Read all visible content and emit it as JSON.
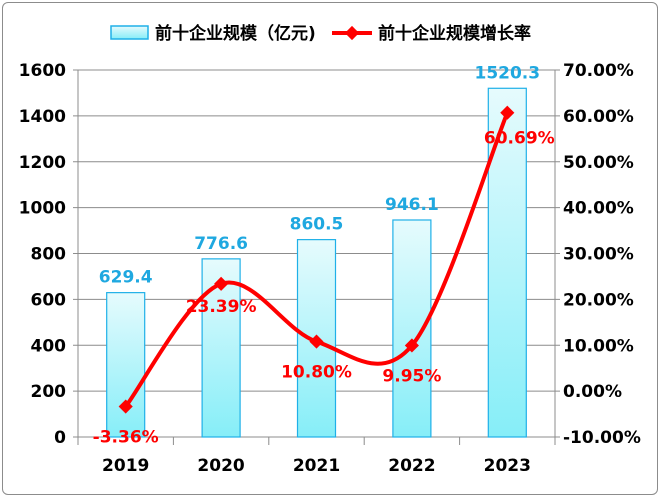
{
  "chart_data": {
    "type": "bar+line",
    "categories": [
      "2019",
      "2020",
      "2021",
      "2022",
      "2023"
    ],
    "series": [
      {
        "name": "前十企业规模（亿元)",
        "type": "bar",
        "axis": "left",
        "values": [
          629.4,
          776.6,
          860.5,
          946.1,
          1520.3
        ],
        "labels": [
          "629.4",
          "776.6",
          "860.5",
          "946.1",
          "1520.3"
        ],
        "color": "#8ff0f8",
        "label_color": "#1fa8e0"
      },
      {
        "name": "前十企业规模增长率",
        "type": "line",
        "axis": "right",
        "values": [
          -3.36,
          23.39,
          10.8,
          9.95,
          60.69
        ],
        "labels": [
          "-3.36%",
          "23.39%",
          "10.80%",
          "9.95%",
          "60.69%"
        ],
        "color": "#ff0000"
      }
    ],
    "left_axis": {
      "min": 0,
      "max": 1600,
      "step": 200,
      "ticks": [
        "0",
        "200",
        "400",
        "600",
        "800",
        "1000",
        "1200",
        "1400",
        "1600"
      ]
    },
    "right_axis": {
      "min": -10,
      "max": 70,
      "step": 10,
      "ticks": [
        "-10.00%",
        "0.00%",
        "10.00%",
        "20.00%",
        "30.00%",
        "40.00%",
        "50.00%",
        "60.00%",
        "70.00%"
      ]
    },
    "grid": true,
    "legend_position": "top"
  }
}
